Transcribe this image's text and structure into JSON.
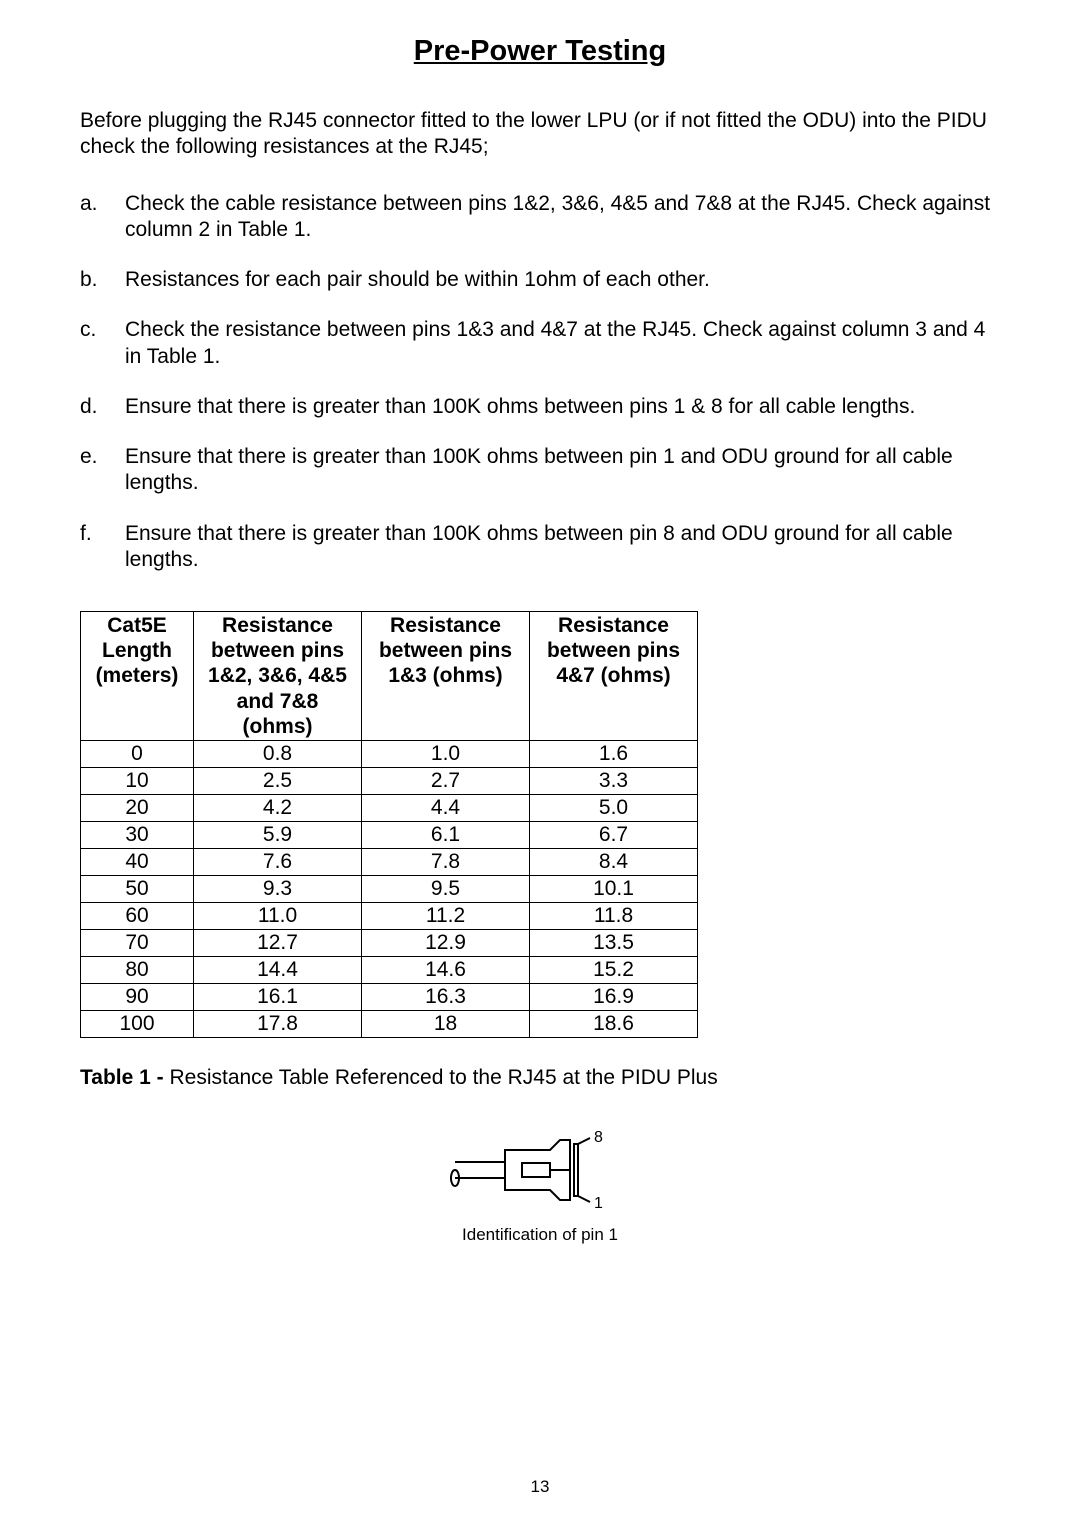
{
  "title": "Pre-Power Testing",
  "intro": "Before plugging the RJ45 connector fitted to the lower LPU (or if not fitted the ODU) into the PIDU check the following resistances at the RJ45;",
  "list": [
    {
      "marker": "a.",
      "text": "Check the cable resistance between pins 1&2, 3&6, 4&5 and 7&8 at the RJ45. Check against column 2 in Table 1."
    },
    {
      "marker": "b.",
      "text": "Resistances for each pair should be within 1ohm of each other."
    },
    {
      "marker": "c.",
      "text": "Check the resistance between pins 1&3 and 4&7 at the RJ45. Check against column 3 and 4 in Table 1."
    },
    {
      "marker": "d.",
      "text": "Ensure that there is greater than 100K ohms between pins 1 & 8 for all cable lengths."
    },
    {
      "marker": "e.",
      "text": "Ensure that there is greater than 100K ohms between pin 1 and ODU ground for all cable lengths."
    },
    {
      "marker": "f.",
      "text": "Ensure that there is greater than 100K ohms between pin 8 and ODU ground for all cable lengths."
    }
  ],
  "table": {
    "headers": [
      "Cat5E Length (meters)",
      "Resistance between pins 1&2, 3&6, 4&5 and 7&8 (ohms)",
      "Resistance between pins 1&3 (ohms)",
      "Resistance between pins 4&7 (ohms)"
    ],
    "rows": [
      [
        "0",
        "0.8",
        "1.0",
        "1.6"
      ],
      [
        "10",
        "2.5",
        "2.7",
        "3.3"
      ],
      [
        "20",
        "4.2",
        "4.4",
        "5.0"
      ],
      [
        "30",
        "5.9",
        "6.1",
        "6.7"
      ],
      [
        "40",
        "7.6",
        "7.8",
        "8.4"
      ],
      [
        "50",
        "9.3",
        "9.5",
        "10.1"
      ],
      [
        "60",
        "11.0",
        "11.2",
        "11.8"
      ],
      [
        "70",
        "12.7",
        "12.9",
        "13.5"
      ],
      [
        "80",
        "14.4",
        "14.6",
        "15.2"
      ],
      [
        "90",
        "16.1",
        "16.3",
        "16.9"
      ],
      [
        "100",
        "17.8",
        "18",
        "18.6"
      ]
    ]
  },
  "caption_bold": "Table 1 - ",
  "caption_rest": "Resistance Table Referenced to the RJ45 at the PIDU Plus",
  "figure": {
    "pin_top": "8",
    "pin_bottom": "1",
    "caption": "Identification of pin 1"
  },
  "page_number": "13"
}
